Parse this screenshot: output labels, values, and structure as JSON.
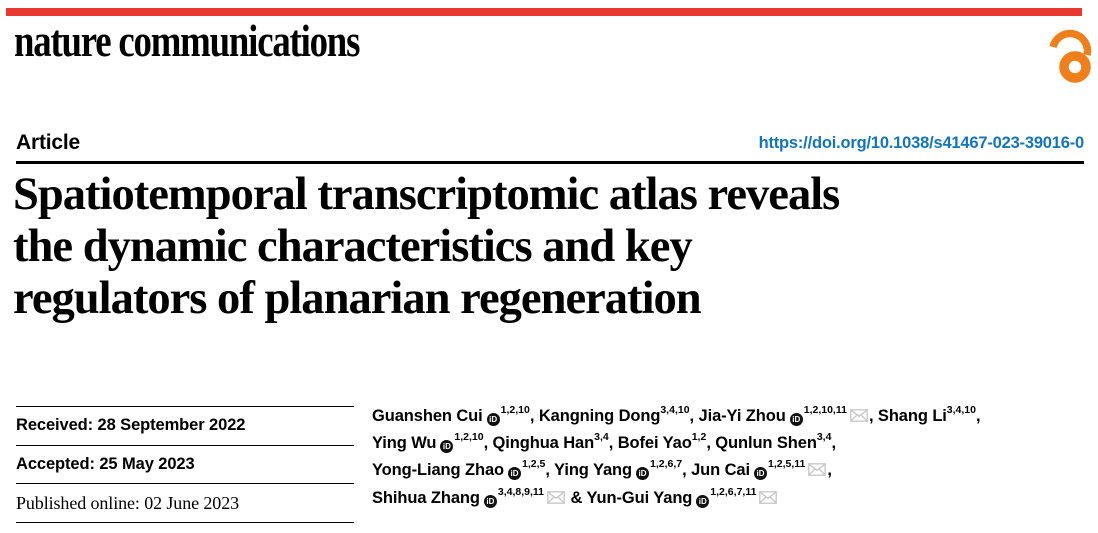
{
  "masthead": {
    "journal_name": "nature communications",
    "accent_red": "#e8382f",
    "open_access_color": "#ef7f1b",
    "open_access_icon": "open-lock"
  },
  "header": {
    "article_type": "Article",
    "doi": "https://doi.org/10.1038/s41467-023-39016-0",
    "doi_color": "#1376bd",
    "title": "Spatiotemporal transcriptomic atlas reveals the dynamic characteristics and key regulators of planarian regeneration",
    "title_lines": [
      "Spatiotemporal transcriptomic atlas reveals",
      "the dynamic characteristics and key",
      "regulators of planarian regeneration"
    ]
  },
  "dates": {
    "rows": [
      {
        "text": "Received: 28 September 2022",
        "style": "bold"
      },
      {
        "text": "Accepted: 25 May 2023",
        "style": "bold"
      },
      {
        "text": "Published online: 02 June 2023",
        "style": "serif"
      }
    ]
  },
  "authors": {
    "orcid_icon_label": "iD",
    "list": [
      {
        "name": "Guanshen Cui",
        "orcid": true,
        "affiliations": "1,2,10",
        "email": false,
        "sep_after": ", "
      },
      {
        "name": "Kangning Dong",
        "orcid": false,
        "affiliations": "3,4,10",
        "email": false,
        "sep_after": ", "
      },
      {
        "name": "Jia-Yi Zhou",
        "orcid": true,
        "affiliations": "1,2,10,11",
        "email": true,
        "sep_after": ", "
      },
      {
        "name": "Shang Li",
        "orcid": false,
        "affiliations": "3,4,10",
        "email": false,
        "sep_after": ",",
        "break_after": true
      },
      {
        "name": "Ying Wu",
        "orcid": true,
        "affiliations": "1,2,10",
        "email": false,
        "sep_after": ", "
      },
      {
        "name": "Qinghua Han",
        "orcid": false,
        "affiliations": "3,4",
        "email": false,
        "sep_after": ", "
      },
      {
        "name": "Bofei Yao",
        "orcid": false,
        "affiliations": "1,2",
        "email": false,
        "sep_after": ", "
      },
      {
        "name": "Qunlun Shen",
        "orcid": false,
        "affiliations": "3,4",
        "email": false,
        "sep_after": ",",
        "break_after": true
      },
      {
        "name": "Yong-Liang Zhao",
        "orcid": true,
        "affiliations": "1,2,5",
        "email": false,
        "sep_after": ", "
      },
      {
        "name": "Ying Yang",
        "orcid": true,
        "affiliations": "1,2,6,7",
        "email": false,
        "sep_after": ", "
      },
      {
        "name": "Jun Cai",
        "orcid": true,
        "affiliations": "1,2,5,11",
        "email": true,
        "sep_after": ",",
        "break_after": true
      },
      {
        "name": "Shihua Zhang",
        "orcid": true,
        "affiliations": "3,4,8,9,11",
        "email": true,
        "sep_after": " & "
      },
      {
        "name": "Yun-Gui Yang",
        "orcid": true,
        "affiliations": "1,2,6,7,11",
        "email": true,
        "sep_after": ""
      }
    ]
  }
}
